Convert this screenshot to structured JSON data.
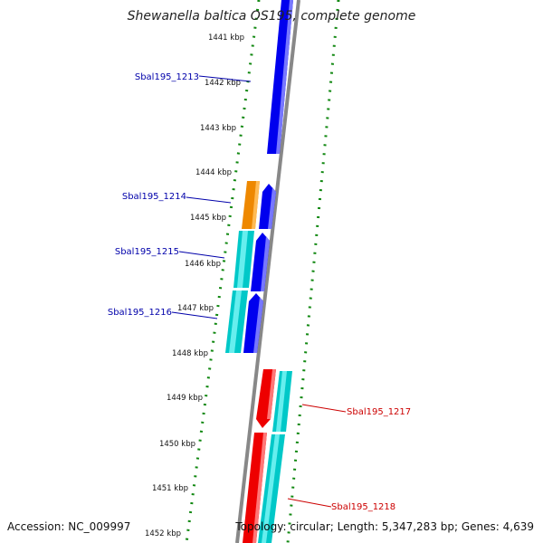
{
  "title": "Shewanella baltica OS195, complete genome",
  "footer": {
    "accession": "Accession: NC_009997",
    "summary": "Topology: circular; Length: 5,347,283 bp; Genes: 4,639"
  },
  "tick_labels": [
    "1441 kbp",
    "1442 kbp",
    "1443 kbp",
    "1444 kbp",
    "1445 kbp",
    "1446 kbp",
    "1447 kbp",
    "1448 kbp",
    "1449 kbp",
    "1450 kbp",
    "1451 kbp",
    "1452 kbp"
  ],
  "gene_labels": [
    "Sbal195_1213",
    "Sbal195_1214",
    "Sbal195_1215",
    "Sbal195_1216",
    "Sbal195_1217",
    "Sbal195_1218"
  ],
  "colors": {
    "forward_cds": "#0000ee",
    "reverse_cds": "#ee0000",
    "trna": "#ee8800",
    "feature": "#00c8c8",
    "backbone": "#888888",
    "ticks": "#118811",
    "forward_label": "#0000aa",
    "reverse_label": "#cc0000"
  }
}
